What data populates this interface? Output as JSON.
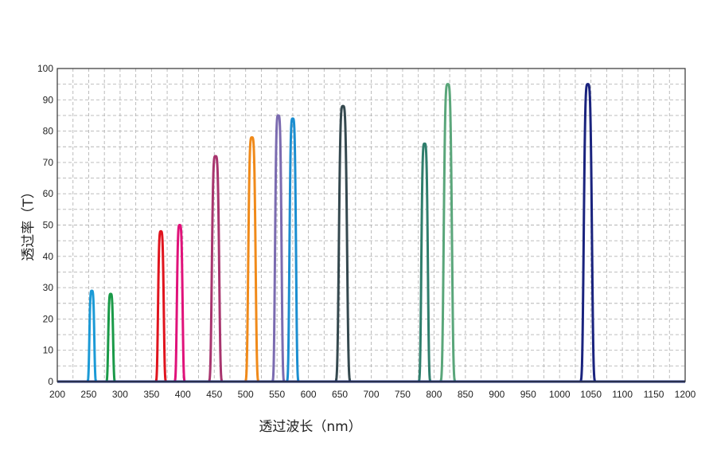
{
  "chart_data": {
    "type": "line",
    "title": "",
    "xlabel": "透过波长（nm）",
    "ylabel": "透过率（T）",
    "xlim": [
      200,
      1200
    ],
    "ylim": [
      0,
      100
    ],
    "x_ticks": [
      "200",
      "250",
      "300",
      "350",
      "400",
      "450",
      "500",
      "550",
      "600",
      "650",
      "700",
      "750",
      "800",
      "850",
      "900",
      "950",
      "1000",
      "1050",
      "1100",
      "1150",
      "1200"
    ],
    "y_ticks": [
      "0",
      "10",
      "20",
      "30",
      "40",
      "50",
      "60",
      "70",
      "80",
      "90",
      "100"
    ],
    "grid": true,
    "grid_style": "dashed",
    "colors": {
      "baseline": "#1a2a7a",
      "frame": "#333333",
      "grid": "#b5b5b5"
    },
    "series": [
      {
        "center": 255,
        "fwhm": 6,
        "peak": 29,
        "color": "#1b9ad6"
      },
      {
        "center": 285,
        "fwhm": 6,
        "peak": 28,
        "color": "#1a9a48"
      },
      {
        "center": 365,
        "fwhm": 7,
        "peak": 48,
        "color": "#e0141e"
      },
      {
        "center": 395,
        "fwhm": 7,
        "peak": 50,
        "color": "#e0127a"
      },
      {
        "center": 452,
        "fwhm": 9,
        "peak": 72,
        "color": "#a8356e"
      },
      {
        "center": 510,
        "fwhm": 9,
        "peak": 78,
        "color": "#f08a1a"
      },
      {
        "center": 552,
        "fwhm": 8,
        "peak": 85,
        "color": "#7b6bb0"
      },
      {
        "center": 575,
        "fwhm": 8,
        "peak": 84,
        "color": "#1b8ed0"
      },
      {
        "center": 655,
        "fwhm": 10,
        "peak": 88,
        "color": "#34484e"
      },
      {
        "center": 785,
        "fwhm": 8,
        "peak": 76,
        "color": "#2f7e6c"
      },
      {
        "center": 822,
        "fwhm": 10,
        "peak": 95,
        "color": "#5aa67a"
      },
      {
        "center": 1045,
        "fwhm": 10,
        "peak": 95,
        "color": "#1a237e"
      }
    ]
  }
}
